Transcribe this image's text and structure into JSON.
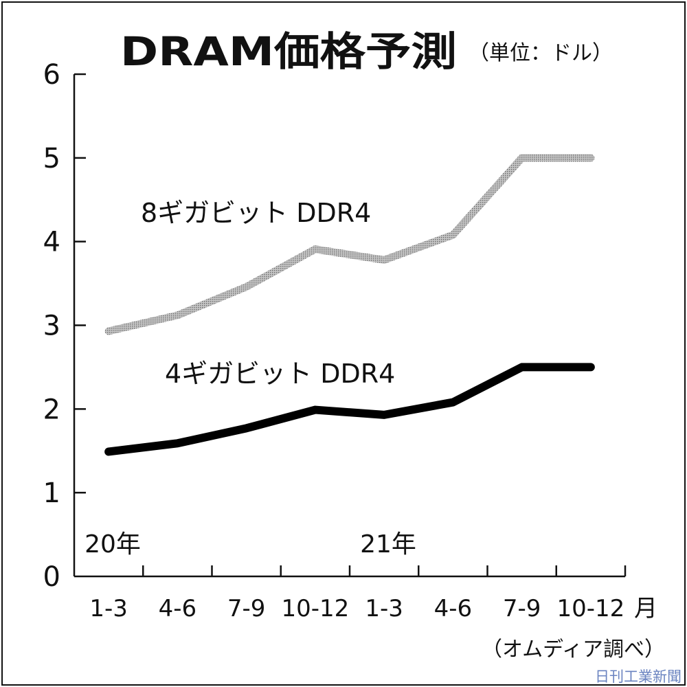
{
  "chart_data": {
    "type": "line",
    "title": "DRAM価格予測",
    "unit_note": "（単位：ドル）",
    "y_ticks": [
      "0",
      "1",
      "2",
      "3",
      "4",
      "5",
      "6"
    ],
    "ylim": [
      0,
      6
    ],
    "categories": [
      "1-3",
      "4-6",
      "7-9",
      "10-12",
      "1-3",
      "4-6",
      "7-9",
      "10-12"
    ],
    "x_unit": "月",
    "year_labels": [
      {
        "index": 0,
        "label": "20年"
      },
      {
        "index": 4,
        "label": "21年"
      }
    ],
    "series": [
      {
        "name": "8ギガビット DDR4",
        "values": [
          2.93,
          3.12,
          3.46,
          3.91,
          3.78,
          4.08,
          5.0,
          5.0
        ],
        "color": "#a6a6a6",
        "style": "dotted-gray"
      },
      {
        "name": "4ギガビット DDR4",
        "values": [
          1.49,
          1.59,
          1.77,
          1.99,
          1.93,
          2.08,
          2.5,
          2.5
        ],
        "color": "#000000",
        "style": "solid-black"
      }
    ],
    "source": "（オムディア調べ）",
    "credit": "日刊工業新聞",
    "legend": "inline",
    "grid": false
  }
}
